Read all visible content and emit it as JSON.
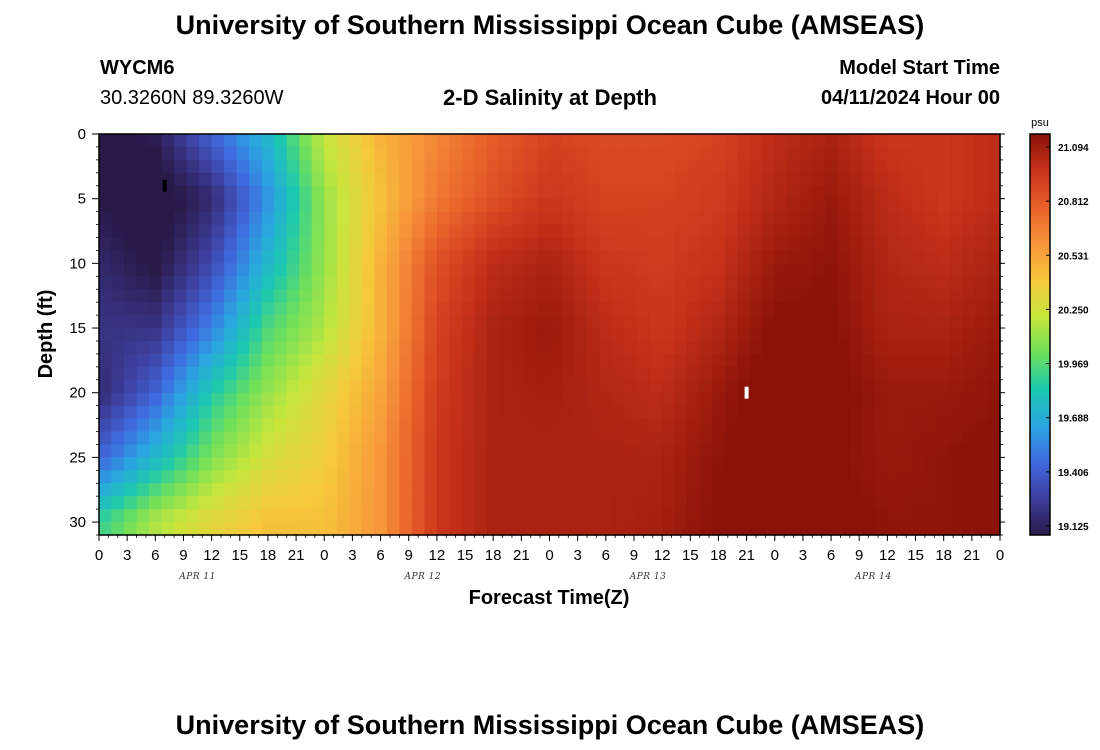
{
  "title": "University of Southern Mississippi Ocean Cube (AMSEAS)",
  "title_bottom": "University of Southern Mississippi Ocean Cube (AMSEAS)",
  "station": {
    "id": "WYCM6",
    "coords": "30.3260N  89.3260W"
  },
  "model": {
    "label": "Model Start Time",
    "value": "04/11/2024 Hour 00"
  },
  "chart_data": {
    "type": "heatmap",
    "title": "2-D Salinity at Depth",
    "xlabel": "Forecast Time(Z)",
    "ylabel": "Depth (ft)",
    "x_hours": [
      0,
      6,
      12,
      18,
      24,
      30,
      36,
      42,
      48,
      54,
      60,
      66,
      72,
      78,
      84,
      90,
      96
    ],
    "y_depth_ft": [
      0,
      5,
      10,
      15,
      20,
      25,
      30
    ],
    "values": [
      [
        19.1,
        19.15,
        19.45,
        19.75,
        20.2,
        20.45,
        20.6,
        20.75,
        20.85,
        20.82,
        20.82,
        20.85,
        20.95,
        21.0,
        20.9,
        20.9,
        20.95
      ],
      [
        19.12,
        19.05,
        19.2,
        19.6,
        20.1,
        20.4,
        20.65,
        20.8,
        20.9,
        20.85,
        20.85,
        20.88,
        20.98,
        21.05,
        20.95,
        20.9,
        20.95
      ],
      [
        19.2,
        19.1,
        19.35,
        19.75,
        20.1,
        20.45,
        20.8,
        20.95,
        21.0,
        20.9,
        20.88,
        20.92,
        21.05,
        21.08,
        20.98,
        20.95,
        21.0
      ],
      [
        19.25,
        19.25,
        19.55,
        19.95,
        20.15,
        20.45,
        20.85,
        21.0,
        21.05,
        20.95,
        20.9,
        20.98,
        21.1,
        21.1,
        21.0,
        21.0,
        21.05
      ],
      [
        19.2,
        19.45,
        19.85,
        20.1,
        20.3,
        20.5,
        20.88,
        21.0,
        21.02,
        20.98,
        20.95,
        21.05,
        21.15,
        21.12,
        21.05,
        21.05,
        21.08
      ],
      [
        19.45,
        19.75,
        20.05,
        20.25,
        20.35,
        20.55,
        20.9,
        21.0,
        21.0,
        21.0,
        21.0,
        21.08,
        21.15,
        21.1,
        21.05,
        21.08,
        21.1
      ],
      [
        19.9,
        20.15,
        20.3,
        20.4,
        20.4,
        20.55,
        20.9,
        21.0,
        21.0,
        21.0,
        21.02,
        21.1,
        21.18,
        21.12,
        21.08,
        21.08,
        21.1
      ]
    ],
    "x_tick_labels": [
      "0",
      "3",
      "6",
      "9",
      "12",
      "15",
      "18",
      "21",
      "0",
      "3",
      "6",
      "9",
      "12",
      "15",
      "18",
      "21",
      "0",
      "3",
      "6",
      "9",
      "12",
      "15",
      "18",
      "21",
      "0",
      "3",
      "6",
      "9",
      "12",
      "15",
      "18",
      "21",
      "0"
    ],
    "day_labels": [
      "APR 11",
      "APR 12",
      "APR 13",
      "APR 14"
    ],
    "y_tick_labels": [
      "0",
      "5",
      "10",
      "15",
      "20",
      "25",
      "30"
    ],
    "xlim_hours": [
      0,
      96
    ],
    "ylim_ft": [
      0,
      31
    ],
    "colorbar": {
      "unit": "psu",
      "min": 19.125,
      "max": 21.094,
      "ticks": [
        "21.094",
        "20.812",
        "20.531",
        "20.250",
        "19.969",
        "19.688",
        "19.406",
        "19.125"
      ],
      "colors": [
        "#2a1a4a",
        "#3e3e9c",
        "#3f6be0",
        "#2aa6e0",
        "#1cc8b0",
        "#6fe05a",
        "#c8e63c",
        "#f6c83a",
        "#f7943a",
        "#e8602a",
        "#c8321a",
        "#8a1208"
      ]
    },
    "markers": [
      {
        "hour": 7,
        "depth_ft": 4,
        "color": "#000000"
      },
      {
        "hour": 69,
        "depth_ft": 20,
        "color": "#ffffff"
      }
    ]
  }
}
